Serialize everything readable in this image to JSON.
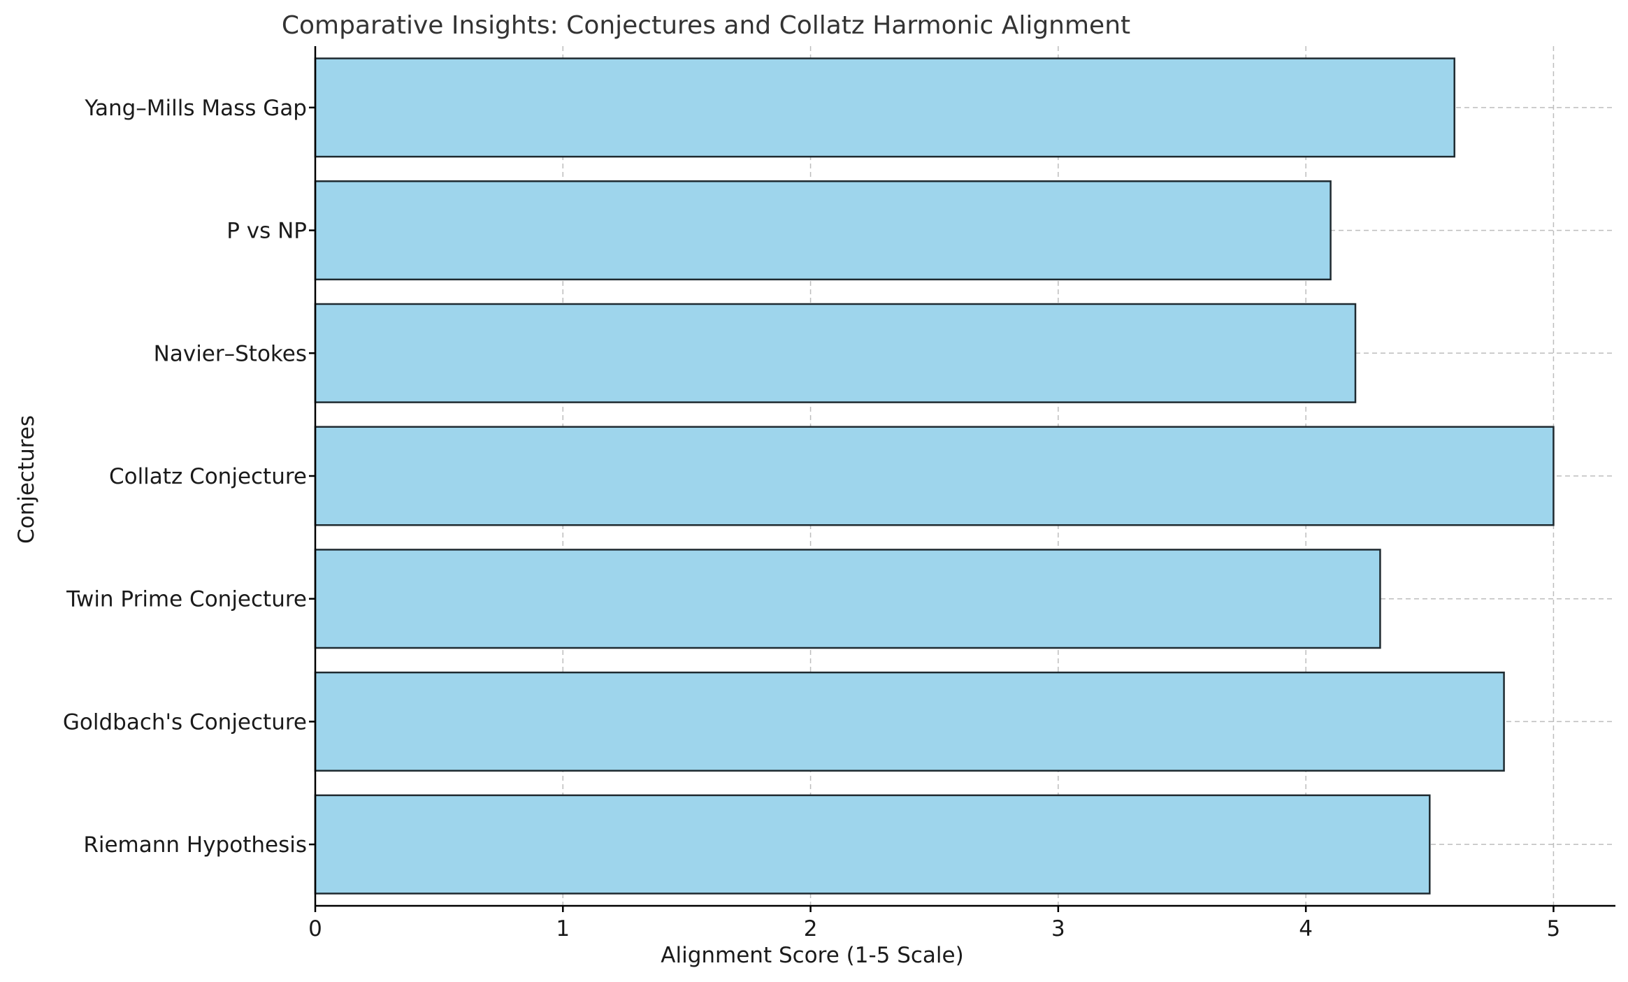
{
  "chart_data": {
    "type": "bar",
    "orientation": "horizontal",
    "title": "Comparative Insights: Conjectures and Collatz Harmonic Alignment",
    "xlabel": "Alignment Score (1-5 Scale)",
    "ylabel": "Conjectures",
    "categories": [
      "Riemann Hypothesis",
      "Goldbach's Conjecture",
      "Twin Prime Conjecture",
      "Collatz Conjecture",
      "Navier–Stokes",
      "P vs NP",
      "Yang–Mills Mass Gap"
    ],
    "values": [
      4.5,
      4.8,
      4.3,
      5.0,
      4.2,
      4.1,
      4.6
    ],
    "xlim": [
      0,
      5.25
    ],
    "xticks": [
      "0",
      "1",
      "2",
      "3",
      "4",
      "5"
    ],
    "grid": true,
    "colors": {
      "bar": "#9ed5ec",
      "edge": "#1f2a30",
      "grid": "#bdbdbd"
    }
  }
}
